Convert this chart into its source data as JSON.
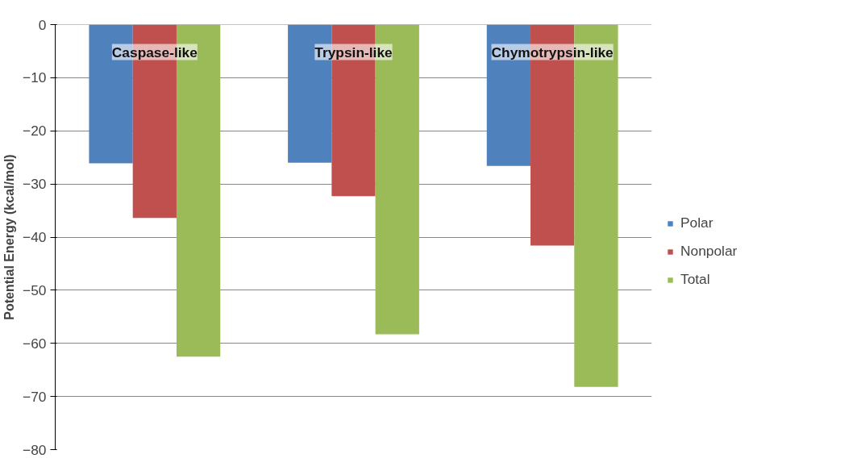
{
  "chart_data": {
    "type": "bar",
    "ylabel": "Potential Energy (kcal/mol)",
    "categories": [
      "Caspase-like",
      "Trypsin-like",
      "Chymotrypsin-like"
    ],
    "series": [
      {
        "name": "Polar",
        "color": "#4f81bd",
        "values": [
          -26.1,
          -26.0,
          -26.6
        ]
      },
      {
        "name": "Nonpolar",
        "color": "#c0504d",
        "values": [
          -36.4,
          -32.3,
          -41.6
        ]
      },
      {
        "name": "Total",
        "color": "#9bbb59",
        "values": [
          -62.5,
          -58.3,
          -68.2
        ]
      }
    ],
    "ylim": [
      -80,
      0
    ],
    "yticks": [
      0,
      -10,
      -20,
      -30,
      -40,
      -50,
      -60,
      -70,
      -80
    ],
    "grid": "y",
    "legend": "right"
  }
}
